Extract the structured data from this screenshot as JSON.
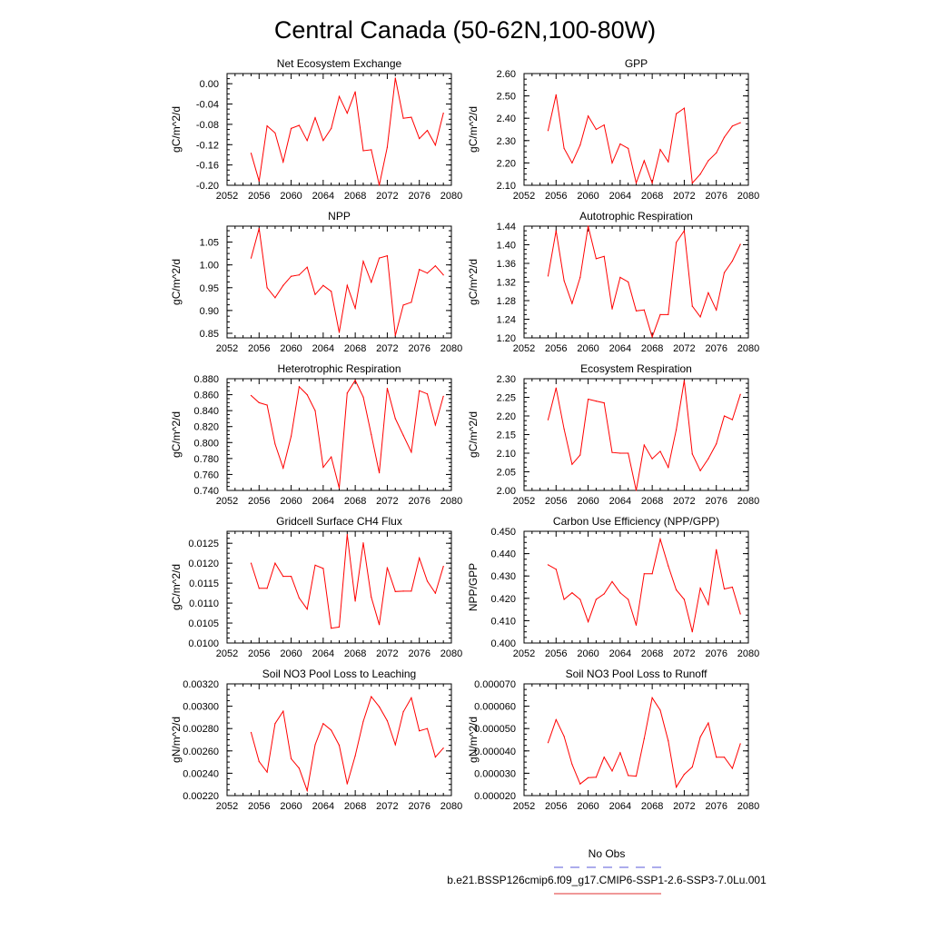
{
  "figure": {
    "title": "Central Canada (50-62N,100-80W)",
    "legend": [
      {
        "label": "No Obs",
        "color": "#5a5ad8",
        "dashed": true
      },
      {
        "label": "b.e21.BSSP126cmip6.f09_g17.CMIP6-SSP1-2.6-SSP3-7.0Lu.001",
        "color": "#e03030",
        "dashed": false
      }
    ],
    "series_color": "#ff0000"
  },
  "chart_data": [
    {
      "type": "line",
      "title": "Net Ecosystem Exchange",
      "ylabel": "gC/m^2/d",
      "xlim": [
        2052,
        2080
      ],
      "ylim": [
        -0.2,
        0.02
      ],
      "x_ticks": [
        "2052",
        "2056",
        "2060",
        "2064",
        "2068",
        "2072",
        "2076",
        "2080"
      ],
      "y_ticks": [
        -0.2,
        -0.16,
        -0.12,
        -0.08,
        -0.04,
        0.0
      ],
      "y_tick_labels": [
        "-0.20",
        "-0.16",
        "-0.12",
        "-0.08",
        "-0.04",
        "0.00"
      ],
      "x": [
        2055,
        2056,
        2057,
        2058,
        2059,
        2060,
        2061,
        2062,
        2063,
        2064,
        2065,
        2066,
        2067,
        2068,
        2069,
        2070,
        2071,
        2072,
        2073,
        2074,
        2075,
        2076,
        2077,
        2078,
        2079
      ],
      "values": [
        -0.137,
        -0.192,
        -0.083,
        -0.097,
        -0.154,
        -0.088,
        -0.082,
        -0.112,
        -0.067,
        -0.112,
        -0.088,
        -0.025,
        -0.058,
        -0.016,
        -0.132,
        -0.13,
        -0.2,
        -0.125,
        0.011,
        -0.068,
        -0.066,
        -0.108,
        -0.092,
        -0.121,
        -0.058
      ]
    },
    {
      "type": "line",
      "title": "GPP",
      "ylabel": "gC/m^2/d",
      "xlim": [
        2052,
        2080
      ],
      "ylim": [
        2.1,
        2.6
      ],
      "x_ticks": [
        "2052",
        "2056",
        "2060",
        "2064",
        "2068",
        "2072",
        "2076",
        "2080"
      ],
      "y_ticks": [
        2.1,
        2.2,
        2.3,
        2.4,
        2.5,
        2.6
      ],
      "y_tick_labels": [
        "2.10",
        "2.20",
        "2.30",
        "2.40",
        "2.50",
        "2.60"
      ],
      "x": [
        2055,
        2056,
        2057,
        2058,
        2059,
        2060,
        2061,
        2062,
        2063,
        2064,
        2065,
        2066,
        2067,
        2068,
        2069,
        2070,
        2071,
        2072,
        2073,
        2074,
        2075,
        2076,
        2077,
        2078,
        2079
      ],
      "values": [
        2.345,
        2.505,
        2.265,
        2.2,
        2.28,
        2.41,
        2.35,
        2.37,
        2.2,
        2.285,
        2.265,
        2.11,
        2.21,
        2.11,
        2.26,
        2.205,
        2.42,
        2.445,
        2.11,
        2.15,
        2.21,
        2.245,
        2.315,
        2.365,
        2.38
      ]
    },
    {
      "type": "line",
      "title": "NPP",
      "ylabel": "gC/m^2/d",
      "xlim": [
        2052,
        2080
      ],
      "ylim": [
        0.84,
        1.085
      ],
      "x_ticks": [
        "2052",
        "2056",
        "2060",
        "2064",
        "2068",
        "2072",
        "2076",
        "2080"
      ],
      "y_ticks": [
        0.85,
        0.9,
        0.95,
        1.0,
        1.05
      ],
      "y_tick_labels": [
        "0.85",
        "0.90",
        "0.95",
        "1.00",
        "1.05"
      ],
      "x": [
        2055,
        2056,
        2057,
        2058,
        2059,
        2060,
        2061,
        2062,
        2063,
        2064,
        2065,
        2066,
        2067,
        2068,
        2069,
        2070,
        2071,
        2072,
        2073,
        2074,
        2075,
        2076,
        2077,
        2078,
        2079
      ],
      "values": [
        1.015,
        1.08,
        0.95,
        0.928,
        0.955,
        0.975,
        0.978,
        0.995,
        0.935,
        0.955,
        0.942,
        0.852,
        0.955,
        0.905,
        1.008,
        0.962,
        1.015,
        1.02,
        0.845,
        0.912,
        0.918,
        0.99,
        0.982,
        0.998,
        0.978
      ]
    },
    {
      "type": "line",
      "title": "Autotrophic Respiration",
      "ylabel": "gC/m^2/d",
      "xlim": [
        2052,
        2080
      ],
      "ylim": [
        1.2,
        1.44
      ],
      "x_ticks": [
        "2052",
        "2056",
        "2060",
        "2064",
        "2068",
        "2072",
        "2076",
        "2080"
      ],
      "y_ticks": [
        1.2,
        1.24,
        1.28,
        1.32,
        1.36,
        1.4,
        1.44
      ],
      "y_tick_labels": [
        "1.20",
        "1.24",
        "1.28",
        "1.32",
        "1.36",
        "1.40",
        "1.44"
      ],
      "x": [
        2055,
        2056,
        2057,
        2058,
        2059,
        2060,
        2061,
        2062,
        2063,
        2064,
        2065,
        2066,
        2067,
        2068,
        2069,
        2070,
        2071,
        2072,
        2073,
        2074,
        2075,
        2076,
        2077,
        2078,
        2079
      ],
      "values": [
        1.333,
        1.43,
        1.323,
        1.274,
        1.33,
        1.44,
        1.37,
        1.375,
        1.262,
        1.33,
        1.32,
        1.258,
        1.26,
        1.202,
        1.25,
        1.25,
        1.405,
        1.43,
        1.268,
        1.245,
        1.297,
        1.26,
        1.34,
        1.365,
        1.401
      ]
    },
    {
      "type": "line",
      "title": "Heterotrophic Respiration",
      "ylabel": "gC/m^2/d",
      "xlim": [
        2052,
        2080
      ],
      "ylim": [
        0.74,
        0.88
      ],
      "x_ticks": [
        "2052",
        "2056",
        "2060",
        "2064",
        "2068",
        "2072",
        "2076",
        "2080"
      ],
      "y_ticks": [
        0.74,
        0.76,
        0.78,
        0.8,
        0.82,
        0.84,
        0.86,
        0.88
      ],
      "y_tick_labels": [
        "0.740",
        "0.760",
        "0.780",
        "0.800",
        "0.820",
        "0.840",
        "0.860",
        "0.880"
      ],
      "x": [
        2055,
        2056,
        2057,
        2058,
        2059,
        2060,
        2061,
        2062,
        2063,
        2064,
        2065,
        2066,
        2067,
        2068,
        2069,
        2070,
        2071,
        2072,
        2073,
        2074,
        2075,
        2076,
        2077,
        2078,
        2079
      ],
      "values": [
        0.859,
        0.85,
        0.847,
        0.798,
        0.768,
        0.808,
        0.87,
        0.86,
        0.84,
        0.769,
        0.782,
        0.743,
        0.862,
        0.878,
        0.857,
        0.81,
        0.762,
        0.868,
        0.83,
        0.809,
        0.788,
        0.865,
        0.861,
        0.822,
        0.858
      ]
    },
    {
      "type": "line",
      "title": "Ecosystem Respiration",
      "ylabel": "gC/m^2/d",
      "xlim": [
        2052,
        2080
      ],
      "ylim": [
        2.0,
        2.3
      ],
      "x_ticks": [
        "2052",
        "2056",
        "2060",
        "2064",
        "2068",
        "2072",
        "2076",
        "2080"
      ],
      "y_ticks": [
        2.0,
        2.05,
        2.1,
        2.15,
        2.2,
        2.25,
        2.3
      ],
      "y_tick_labels": [
        "2.00",
        "2.05",
        "2.10",
        "2.15",
        "2.20",
        "2.25",
        "2.30"
      ],
      "x": [
        2055,
        2056,
        2057,
        2058,
        2059,
        2060,
        2061,
        2062,
        2063,
        2064,
        2065,
        2066,
        2067,
        2068,
        2069,
        2070,
        2071,
        2072,
        2073,
        2074,
        2075,
        2076,
        2077,
        2078,
        2079
      ],
      "values": [
        2.19,
        2.275,
        2.165,
        2.07,
        2.095,
        2.245,
        2.24,
        2.235,
        2.102,
        2.1,
        2.1,
        2.0,
        2.122,
        2.085,
        2.105,
        2.062,
        2.163,
        2.295,
        2.098,
        2.053,
        2.085,
        2.125,
        2.2,
        2.19,
        2.258
      ]
    },
    {
      "type": "line",
      "title": "Gridcell Surface CH4 Flux",
      "ylabel": "gC/m^2/d",
      "xlim": [
        2052,
        2080
      ],
      "ylim": [
        0.01,
        0.0128
      ],
      "x_ticks": [
        "2052",
        "2056",
        "2060",
        "2064",
        "2068",
        "2072",
        "2076",
        "2080"
      ],
      "y_ticks": [
        0.01,
        0.0105,
        0.011,
        0.0115,
        0.012,
        0.0125
      ],
      "y_tick_labels": [
        "0.0100",
        "0.0105",
        "0.0110",
        "0.0115",
        "0.0120",
        "0.0125"
      ],
      "x": [
        2055,
        2056,
        2057,
        2058,
        2059,
        2060,
        2061,
        2062,
        2063,
        2064,
        2065,
        2066,
        2067,
        2068,
        2069,
        2070,
        2071,
        2072,
        2073,
        2074,
        2075,
        2076,
        2077,
        2078,
        2079
      ],
      "values": [
        0.012,
        0.01137,
        0.01137,
        0.012,
        0.01167,
        0.01167,
        0.01113,
        0.01085,
        0.01195,
        0.01187,
        0.01037,
        0.0104,
        0.01272,
        0.01105,
        0.01251,
        0.01115,
        0.01046,
        0.01189,
        0.01129,
        0.0113,
        0.0113,
        0.01213,
        0.01155,
        0.01125,
        0.01192
      ]
    },
    {
      "type": "line",
      "title": "Carbon Use Efficiency (NPP/GPP)",
      "ylabel": "NPP/GPP",
      "xlim": [
        2052,
        2080
      ],
      "ylim": [
        0.4,
        0.45
      ],
      "x_ticks": [
        "2052",
        "2056",
        "2060",
        "2064",
        "2068",
        "2072",
        "2076",
        "2080"
      ],
      "y_ticks": [
        0.4,
        0.41,
        0.42,
        0.43,
        0.44,
        0.45
      ],
      "y_tick_labels": [
        "0.400",
        "0.410",
        "0.420",
        "0.430",
        "0.440",
        "0.450"
      ],
      "x": [
        2055,
        2056,
        2057,
        2058,
        2059,
        2060,
        2061,
        2062,
        2063,
        2064,
        2065,
        2066,
        2067,
        2068,
        2069,
        2070,
        2071,
        2072,
        2073,
        2074,
        2075,
        2076,
        2077,
        2078,
        2079
      ],
      "values": [
        0.435,
        0.433,
        0.4195,
        0.4225,
        0.4195,
        0.4095,
        0.4195,
        0.422,
        0.4275,
        0.4225,
        0.4195,
        0.408,
        0.431,
        0.431,
        0.4465,
        0.4345,
        0.4238,
        0.4195,
        0.405,
        0.4245,
        0.4172,
        0.4418,
        0.4242,
        0.425,
        0.413
      ]
    },
    {
      "type": "line",
      "title": "Soil NO3 Pool Loss to Leaching",
      "ylabel": "gN/m^2/d",
      "xlim": [
        2052,
        2080
      ],
      "ylim": [
        0.0022,
        0.0032
      ],
      "x_ticks": [
        "2052",
        "2056",
        "2060",
        "2064",
        "2068",
        "2072",
        "2076",
        "2080"
      ],
      "y_ticks": [
        0.0022,
        0.0024,
        0.0026,
        0.0028,
        0.003,
        0.0032
      ],
      "y_tick_labels": [
        "0.00220",
        "0.00240",
        "0.00260",
        "0.00280",
        "0.00300",
        "0.00320"
      ],
      "x": [
        2055,
        2056,
        2057,
        2058,
        2059,
        2060,
        2061,
        2062,
        2063,
        2064,
        2065,
        2066,
        2067,
        2068,
        2069,
        2070,
        2071,
        2072,
        2073,
        2074,
        2075,
        2076,
        2077,
        2078,
        2079
      ],
      "values": [
        0.002765,
        0.002505,
        0.00241,
        0.002845,
        0.002955,
        0.00253,
        0.002445,
        0.002245,
        0.002655,
        0.002845,
        0.002785,
        0.00265,
        0.002305,
        0.002555,
        0.002865,
        0.003085,
        0.002995,
        0.00287,
        0.002655,
        0.00295,
        0.003075,
        0.00278,
        0.0028,
        0.002545,
        0.002625
      ]
    },
    {
      "type": "line",
      "title": "Soil NO3 Pool Loss to Runoff",
      "ylabel": "gN/m^2/d",
      "xlim": [
        2052,
        2080
      ],
      "ylim": [
        2e-05,
        7e-05
      ],
      "x_ticks": [
        "2052",
        "2056",
        "2060",
        "2064",
        "2068",
        "2072",
        "2076",
        "2080"
      ],
      "y_ticks": [
        2e-05,
        3e-05,
        4e-05,
        5e-05,
        6e-05,
        7e-05
      ],
      "y_tick_labels": [
        "0.000020",
        "0.000030",
        "0.000040",
        "0.000050",
        "0.000060",
        "0.000070"
      ],
      "x": [
        2055,
        2056,
        2057,
        2058,
        2059,
        2060,
        2061,
        2062,
        2063,
        2064,
        2065,
        2066,
        2067,
        2068,
        2069,
        2070,
        2071,
        2072,
        2073,
        2074,
        2075,
        2076,
        2077,
        2078,
        2079
      ],
      "values": [
        4.37e-05,
        5.4e-05,
        4.65e-05,
        3.4e-05,
        2.52e-05,
        2.8e-05,
        2.82e-05,
        3.72e-05,
        3.1e-05,
        3.92e-05,
        2.9e-05,
        2.87e-05,
        4.55e-05,
        6.38e-05,
        5.82e-05,
        4.45e-05,
        2.38e-05,
        2.95e-05,
        3.28e-05,
        4.62e-05,
        5.25e-05,
        3.72e-05,
        3.72e-05,
        3.22e-05,
        4.32e-05
      ]
    }
  ]
}
